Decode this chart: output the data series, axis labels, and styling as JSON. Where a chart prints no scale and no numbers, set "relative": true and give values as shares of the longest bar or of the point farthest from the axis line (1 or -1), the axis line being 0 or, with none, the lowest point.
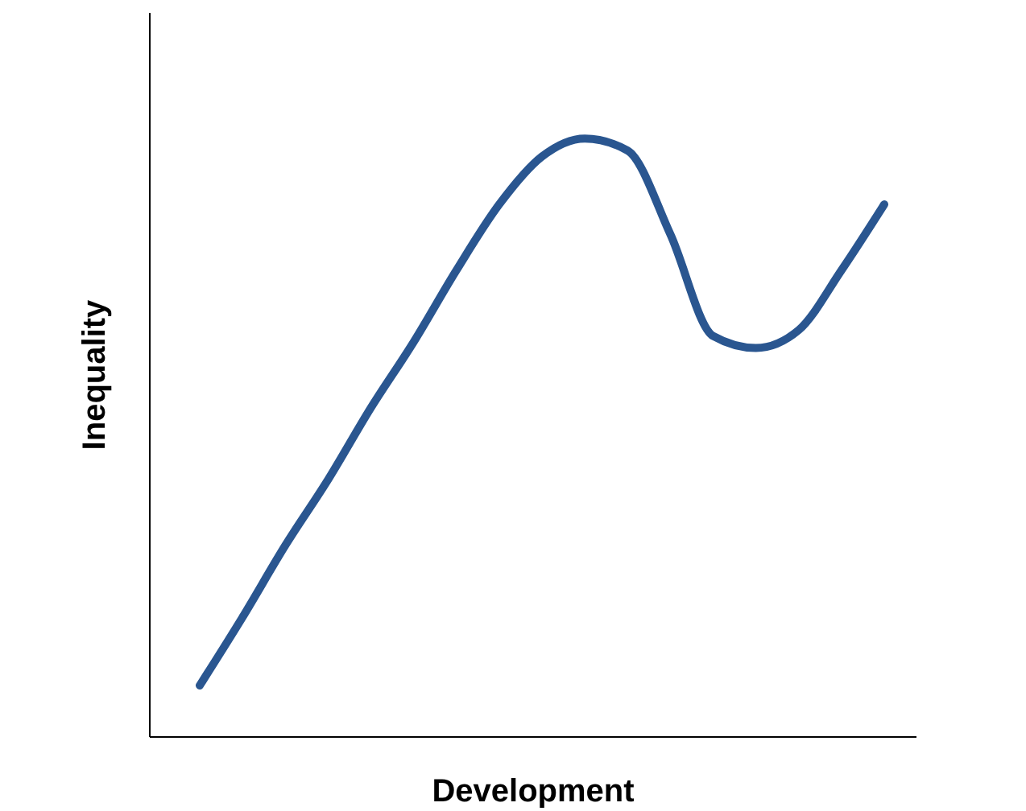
{
  "chart_data": {
    "type": "line",
    "xlabel": "Development",
    "ylabel": "Inequality",
    "relative": true,
    "marker": "none",
    "categories": [
      null,
      null,
      null,
      null,
      null,
      null,
      null,
      null,
      null,
      null,
      null,
      null,
      null,
      null,
      null,
      null,
      null
    ],
    "series": [
      {
        "color": "#2a5690",
        "values": [
          0.086,
          0.2,
          0.32,
          0.43,
          0.55,
          0.66,
          0.78,
          0.89,
          0.97,
          1,
          0.98,
          0.84,
          0.67,
          0.65,
          0.68,
          0.78,
          0.89
        ]
      }
    ]
  }
}
